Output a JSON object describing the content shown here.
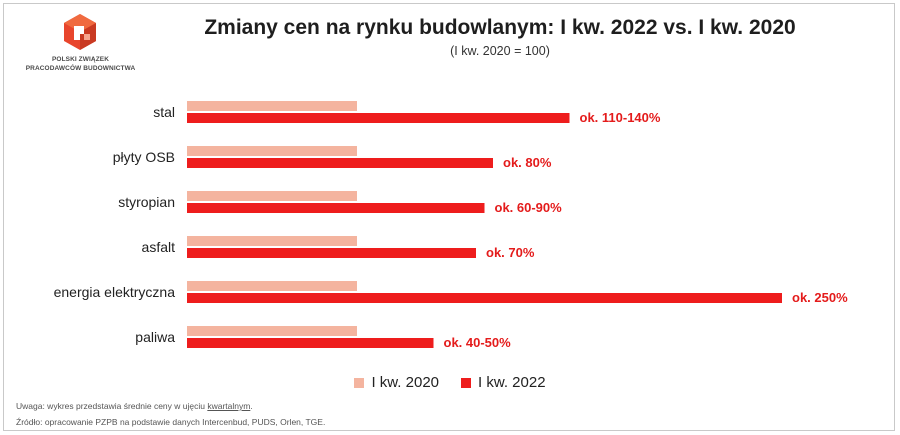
{
  "logo": {
    "line1": "POLSKI ZWIĄZEK",
    "line2": "PRACODAWCÓW BUDOWNICTWA"
  },
  "notes": {
    "uwaga_prefix": "Uwaga: wykres przedstawia średnie ceny w ujęciu ",
    "uwaga_link": "kwartalnym",
    "uwaga_suffix": ".",
    "source": "Źródło: opracowanie PZPB na podstawie danych Intercenbud, PUDS, Orlen, TGE."
  },
  "colors": {
    "series_2020": "#f4b49f",
    "series_2022": "#ee1d1d",
    "label_text": "#e41b1b"
  },
  "chart_data": {
    "type": "bar",
    "orientation": "horizontal",
    "title": "Zmiany cen na rynku budowlanym: I kw. 2022 vs. I kw. 2020",
    "subtitle": "(I kw. 2020 = 100)",
    "categories": [
      "stal",
      "płyty OSB",
      "styropian",
      "asfalt",
      "energia elektryczna",
      "paliwa"
    ],
    "series": [
      {
        "name": "I kw. 2020",
        "values": [
          100,
          100,
          100,
          100,
          100,
          100
        ]
      },
      {
        "name": "I kw. 2022",
        "values": [
          225,
          180,
          175,
          170,
          350,
          145
        ]
      }
    ],
    "data_labels": [
      "ok. 110-140%",
      "ok. 80%",
      "ok. 60-90%",
      "ok. 70%",
      "ok. 250%",
      "ok. 40-50%"
    ],
    "xlim": [
      0,
      350
    ],
    "grid": false,
    "legend": "bottom"
  }
}
